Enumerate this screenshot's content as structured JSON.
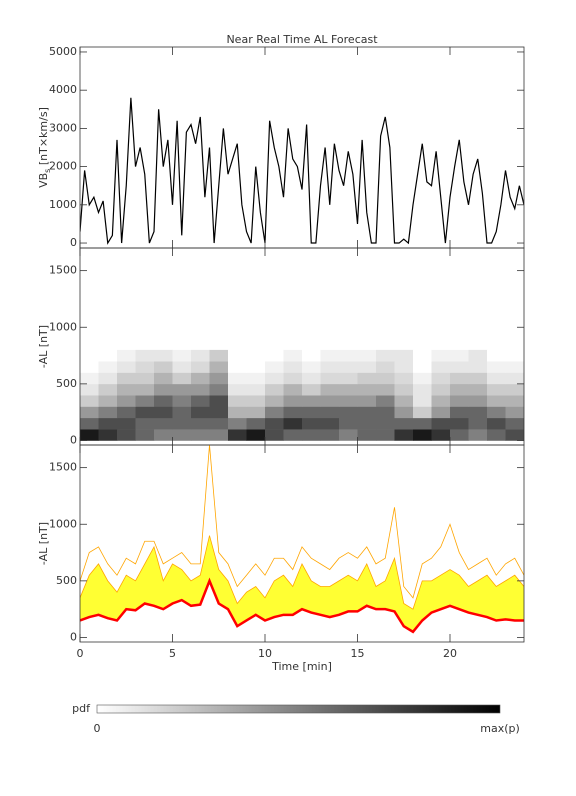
{
  "chart_data": [
    {
      "type": "line",
      "title": "Near Real Time AL Forecast",
      "ylabel": "VB",
      "ylabel_sub": "s",
      "ylabel_unit": " [nT×km/s]",
      "xlim": [
        0,
        24
      ],
      "xticks": [
        0,
        5,
        10,
        15,
        20
      ],
      "ylim": [
        -130,
        5130
      ],
      "yticks": [
        0,
        1000,
        2000,
        3000,
        4000,
        5000
      ],
      "color": "#000000",
      "x": [
        0,
        0.25,
        0.5,
        0.75,
        1,
        1.25,
        1.5,
        1.75,
        2,
        2.25,
        2.5,
        2.75,
        3,
        3.25,
        3.5,
        3.75,
        4,
        4.25,
        4.5,
        4.75,
        5,
        5.25,
        5.5,
        5.75,
        6,
        6.25,
        6.5,
        6.75,
        7,
        7.25,
        7.5,
        7.75,
        8,
        8.25,
        8.5,
        8.75,
        9,
        9.25,
        9.5,
        9.75,
        10,
        10.25,
        10.5,
        10.75,
        11,
        11.25,
        11.5,
        11.75,
        12,
        12.25,
        12.5,
        12.75,
        13,
        13.25,
        13.5,
        13.75,
        14,
        14.25,
        14.5,
        14.75,
        15,
        15.25,
        15.5,
        15.75,
        16,
        16.25,
        16.5,
        16.75,
        17,
        17.25,
        17.5,
        17.75,
        18,
        18.25,
        18.5,
        18.75,
        19,
        19.25,
        19.5,
        19.75,
        20,
        20.25,
        20.5,
        20.75,
        21,
        21.25,
        21.5,
        21.75,
        22,
        22.25,
        22.5,
        22.75,
        23,
        23.25,
        23.5,
        23.75,
        24
      ],
      "values": [
        300,
        1900,
        1000,
        1200,
        800,
        1100,
        0,
        200,
        2700,
        0,
        1500,
        3800,
        2000,
        2500,
        1800,
        0,
        300,
        3500,
        2000,
        2700,
        1000,
        3200,
        200,
        2900,
        3100,
        2600,
        3300,
        1200,
        2500,
        0,
        1500,
        3000,
        1800,
        2200,
        2600,
        1000,
        300,
        0,
        2000,
        800,
        0,
        3200,
        2500,
        2000,
        1200,
        3000,
        2200,
        2000,
        1400,
        3100,
        0,
        0,
        1500,
        2500,
        1000,
        2600,
        1900,
        1500,
        2400,
        1800,
        500,
        2700,
        800,
        0,
        0,
        2800,
        3300,
        2500,
        0,
        0,
        100,
        0,
        1000,
        1800,
        2600,
        1600,
        1500,
        2400,
        1200,
        0,
        1200,
        2000,
        2700,
        1600,
        1000,
        1800,
        2200,
        1300,
        0,
        0,
        300,
        1000,
        1900,
        1200,
        900,
        1500,
        1000
      ]
    },
    {
      "type": "heatmap",
      "ylabel": "-AL [nT]",
      "xlim": [
        0,
        24
      ],
      "xticks": [
        0,
        5,
        10,
        15,
        20
      ],
      "ylim": [
        -40,
        1700
      ],
      "yticks": [
        0,
        500,
        1000,
        1500
      ],
      "x_bins": [
        0,
        1,
        2,
        3,
        4,
        5,
        6,
        7,
        8,
        9,
        10,
        11,
        12,
        13,
        14,
        15,
        16,
        17,
        18,
        19,
        20,
        21,
        22,
        23,
        24
      ],
      "y_bins": [
        0,
        100,
        200,
        300,
        400,
        500,
        600,
        700,
        800
      ],
      "pdf": [
        [
          0.9,
          0.8,
          0.7,
          0.6,
          0.5,
          0.5,
          0.5,
          0.5,
          0.8,
          0.9,
          0.7,
          0.6,
          0.6,
          0.6,
          0.5,
          0.6,
          0.6,
          0.8,
          0.9,
          0.8,
          0.6,
          0.5,
          0.6,
          0.7
        ],
        [
          0.6,
          0.7,
          0.7,
          0.6,
          0.6,
          0.6,
          0.6,
          0.6,
          0.5,
          0.6,
          0.7,
          0.8,
          0.7,
          0.7,
          0.6,
          0.6,
          0.6,
          0.6,
          0.6,
          0.7,
          0.7,
          0.6,
          0.7,
          0.6
        ],
        [
          0.4,
          0.5,
          0.6,
          0.7,
          0.7,
          0.6,
          0.7,
          0.7,
          0.3,
          0.3,
          0.5,
          0.6,
          0.6,
          0.6,
          0.6,
          0.6,
          0.6,
          0.4,
          0.2,
          0.4,
          0.6,
          0.6,
          0.5,
          0.4
        ],
        [
          0.2,
          0.3,
          0.4,
          0.5,
          0.6,
          0.5,
          0.6,
          0.7,
          0.2,
          0.2,
          0.3,
          0.4,
          0.4,
          0.4,
          0.4,
          0.4,
          0.5,
          0.3,
          0.1,
          0.3,
          0.4,
          0.4,
          0.3,
          0.3
        ],
        [
          0.1,
          0.2,
          0.3,
          0.3,
          0.4,
          0.4,
          0.4,
          0.5,
          0.1,
          0.1,
          0.2,
          0.3,
          0.2,
          0.3,
          0.3,
          0.3,
          0.3,
          0.2,
          0.1,
          0.2,
          0.3,
          0.3,
          0.2,
          0.2
        ],
        [
          0.05,
          0.1,
          0.2,
          0.2,
          0.3,
          0.2,
          0.3,
          0.4,
          0.05,
          0.05,
          0.1,
          0.15,
          0.1,
          0.15,
          0.15,
          0.2,
          0.2,
          0.15,
          0.05,
          0.15,
          0.2,
          0.2,
          0.1,
          0.1
        ],
        [
          0,
          0.05,
          0.1,
          0.15,
          0.2,
          0.1,
          0.15,
          0.3,
          0,
          0,
          0.05,
          0.1,
          0.05,
          0.1,
          0.1,
          0.1,
          0.15,
          0.1,
          0,
          0.1,
          0.1,
          0.1,
          0.05,
          0.05
        ],
        [
          0,
          0,
          0.05,
          0.1,
          0.1,
          0.05,
          0.1,
          0.2,
          0,
          0,
          0,
          0.05,
          0,
          0.05,
          0.05,
          0.05,
          0.1,
          0.1,
          0,
          0.05,
          0.05,
          0.1,
          0,
          0
        ]
      ],
      "colorbar_label": "pdf",
      "colorbar_min_label": "0",
      "colorbar_max_label": "max(p)"
    },
    {
      "type": "band",
      "ylabel": "-AL [nT]",
      "xlabel": "Time [min]",
      "xlim": [
        0,
        24
      ],
      "xticks": [
        0,
        5,
        10,
        15,
        20
      ],
      "ylim": [
        -40,
        1700
      ],
      "yticks": [
        0,
        500,
        1000,
        1500
      ],
      "x": [
        0,
        0.5,
        1,
        1.5,
        2,
        2.5,
        3,
        3.5,
        4,
        4.5,
        5,
        5.5,
        6,
        6.5,
        7,
        7.5,
        8,
        8.5,
        9,
        9.5,
        10,
        10.5,
        11,
        11.5,
        12,
        12.5,
        13,
        13.5,
        14,
        14.5,
        15,
        15.5,
        16,
        16.5,
        17,
        17.5,
        18,
        18.5,
        19,
        19.5,
        20,
        20.5,
        21,
        21.5,
        22,
        22.5,
        23,
        23.5,
        24
      ],
      "fill_color": "#ffff33",
      "fill_between": [
        1,
        2
      ],
      "series": [
        {
          "color": "#ffa500",
          "values": [
            500,
            750,
            800,
            650,
            550,
            700,
            650,
            850,
            850,
            650,
            700,
            750,
            650,
            650,
            1700,
            750,
            650,
            450,
            550,
            650,
            550,
            700,
            700,
            600,
            800,
            700,
            650,
            600,
            700,
            750,
            700,
            800,
            650,
            700,
            1150,
            450,
            350,
            650,
            700,
            800,
            1000,
            750,
            600,
            650,
            700,
            550,
            650,
            700,
            550
          ]
        },
        {
          "color": "#ffa500",
          "values": [
            350,
            550,
            650,
            500,
            400,
            550,
            500,
            650,
            800,
            500,
            650,
            600,
            500,
            550,
            900,
            600,
            500,
            300,
            400,
            450,
            350,
            500,
            550,
            450,
            650,
            500,
            450,
            450,
            500,
            550,
            500,
            650,
            450,
            500,
            700,
            300,
            250,
            500,
            500,
            550,
            600,
            550,
            450,
            500,
            550,
            450,
            500,
            550,
            450
          ]
        },
        {
          "color": "#ff0000",
          "values": [
            150,
            180,
            200,
            170,
            150,
            250,
            240,
            300,
            280,
            250,
            300,
            330,
            280,
            290,
            500,
            300,
            250,
            100,
            150,
            200,
            150,
            180,
            200,
            200,
            250,
            220,
            200,
            180,
            200,
            230,
            230,
            280,
            250,
            250,
            230,
            100,
            50,
            150,
            220,
            250,
            280,
            250,
            220,
            200,
            180,
            150,
            160,
            150,
            150
          ]
        }
      ]
    }
  ]
}
